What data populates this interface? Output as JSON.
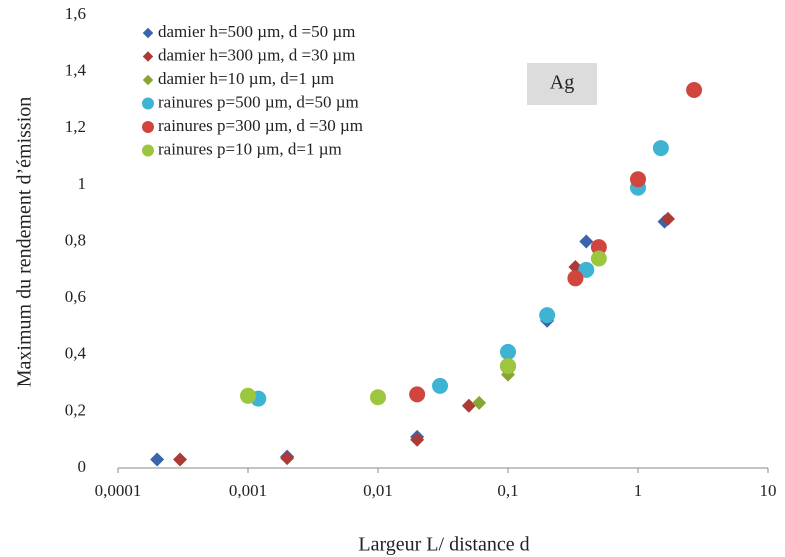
{
  "chart_data": {
    "type": "scatter",
    "xlabel": "Largeur L/ distance d",
    "ylabel": "Maximum du rendement d’émission",
    "annotation": "Ag",
    "log_x": true,
    "legend": "upper left",
    "xlim": [
      0.0001,
      10
    ],
    "xticks": [
      {
        "value": 0.0001,
        "label": "0,0001"
      },
      {
        "value": 0.001,
        "label": "0,001"
      },
      {
        "value": 0.01,
        "label": "0,01"
      },
      {
        "value": 0.1,
        "label": "0,1"
      },
      1,
      10
    ],
    "ylim": [
      0,
      1.6
    ],
    "yticks": [
      0,
      {
        "value": 0.2,
        "label": "0,2"
      },
      {
        "value": 0.4,
        "label": "0,4"
      },
      {
        "value": 0.6,
        "label": "0,6"
      },
      {
        "value": 0.8,
        "label": "0,8"
      },
      1,
      {
        "value": 1.2,
        "label": "1,2"
      },
      {
        "value": 1.4,
        "label": "1,4"
      },
      {
        "value": 1.6,
        "label": "1,6"
      }
    ],
    "series": [
      {
        "name": "damier h=500 µm, d =50 µm",
        "color": "#3a64ae",
        "marker": "diamond",
        "x": [
          0.0002,
          0.002,
          0.02,
          0.2,
          0.4,
          1.6
        ],
        "values": [
          0.03,
          0.04,
          0.11,
          0.52,
          0.8,
          0.87
        ]
      },
      {
        "name": "damier h=300 µm, d =30 µm",
        "color": "#ad3a36",
        "marker": "diamond",
        "x": [
          0.0003,
          0.002,
          0.02,
          0.05,
          0.1,
          0.33,
          1.7
        ],
        "values": [
          0.03,
          0.035,
          0.1,
          0.22,
          0.35,
          0.71,
          0.88
        ]
      },
      {
        "name": "damier h=10 µm, d=1 µm",
        "color": "#88a634",
        "marker": "diamond",
        "x": [
          0.06,
          0.1
        ],
        "values": [
          0.23,
          0.33
        ]
      },
      {
        "name": "rainures p=500 µm, d=50 µm",
        "color": "#3fb4d2",
        "marker": "circle",
        "x": [
          0.0012,
          0.03,
          0.1,
          0.2,
          0.4,
          1,
          1.5
        ],
        "values": [
          0.245,
          0.29,
          0.41,
          0.54,
          0.7,
          0.99,
          1.13
        ]
      },
      {
        "name": "rainures p=300 µm, d =30 µm",
        "color": "#d0463f",
        "marker": "circle",
        "x": [
          0.02,
          0.1,
          0.33,
          0.5,
          1,
          2.7
        ],
        "values": [
          0.26,
          0.36,
          0.67,
          0.78,
          1.02,
          1.335
        ]
      },
      {
        "name": "rainures p=10 µm, d=1 µm",
        "color": "#9cc63e",
        "marker": "circle",
        "x": [
          0.001,
          0.01,
          0.1,
          0.5
        ],
        "values": [
          0.255,
          0.25,
          0.36,
          0.74
        ]
      }
    ]
  }
}
